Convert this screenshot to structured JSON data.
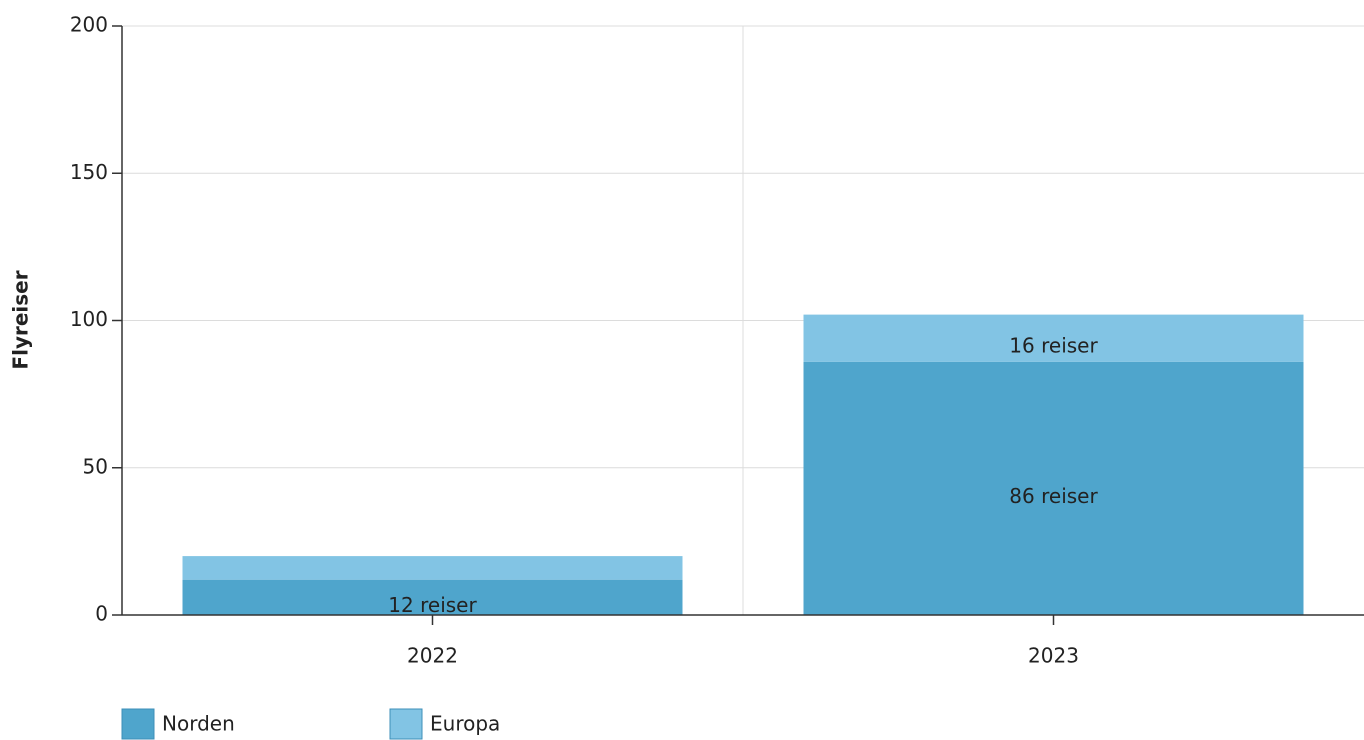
{
  "chart_data": {
    "type": "stacked_bar",
    "y_label": "Flyreiser",
    "categories": [
      "2022",
      "2023"
    ],
    "series": [
      {
        "name": "Norden",
        "color": "#4fa5cc",
        "values": [
          12,
          86
        ],
        "value_labels": [
          "12 reiser",
          "86 reiser"
        ]
      },
      {
        "name": "Europa",
        "color": "#82c4e4",
        "values": [
          8,
          16
        ],
        "value_labels": [
          null,
          "16 reiser"
        ]
      }
    ],
    "ylim": [
      0,
      200
    ],
    "yticks": [
      0,
      50,
      100,
      150,
      200
    ],
    "grid": true,
    "legend": "bottom-left"
  }
}
